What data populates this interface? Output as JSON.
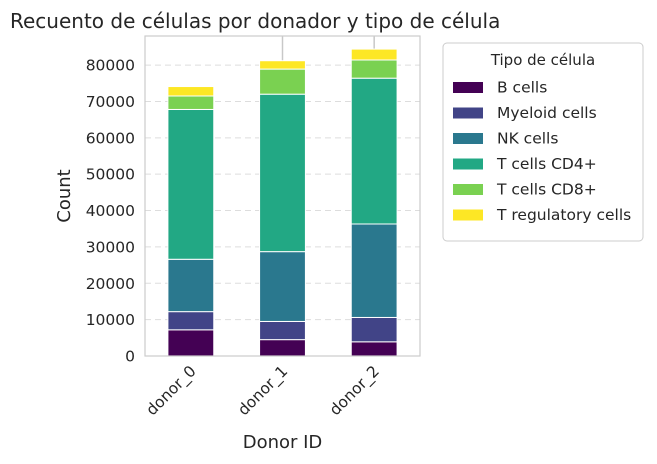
{
  "chart_data": {
    "type": "bar",
    "stacked": true,
    "title": "Recuento de células por donador y tipo de célula",
    "xlabel": "Donor ID",
    "ylabel": "Count",
    "categories": [
      "donor_0",
      "donor_1",
      "donor_2"
    ],
    "ylim": [
      0,
      88000
    ],
    "yticks": [
      0,
      10000,
      20000,
      30000,
      40000,
      50000,
      60000,
      70000,
      80000
    ],
    "grid": true,
    "legend": {
      "title": "Tipo de célula",
      "placement": "outside-right"
    },
    "series": [
      {
        "name": "B cells",
        "color": "#440154",
        "values": [
          7200,
          4500,
          3900
        ]
      },
      {
        "name": "Myeloid cells",
        "color": "#414487",
        "values": [
          5000,
          5000,
          6700
        ]
      },
      {
        "name": "NK cells",
        "color": "#2a788e",
        "values": [
          14400,
          19200,
          25700
        ]
      },
      {
        "name": "T cells CD4+",
        "color": "#22a884",
        "values": [
          41200,
          43300,
          40100
        ]
      },
      {
        "name": "T cells CD8+",
        "color": "#7ad151",
        "values": [
          3700,
          6900,
          5000
        ]
      },
      {
        "name": "T regulatory cells",
        "color": "#fde725",
        "values": [
          2600,
          2300,
          3000
        ]
      }
    ],
    "error_bars": [
      {
        "low": 74400,
        "high": 74400
      },
      {
        "low": 81200,
        "high": 91000
      },
      {
        "low": 84400,
        "high": 91000
      }
    ]
  }
}
